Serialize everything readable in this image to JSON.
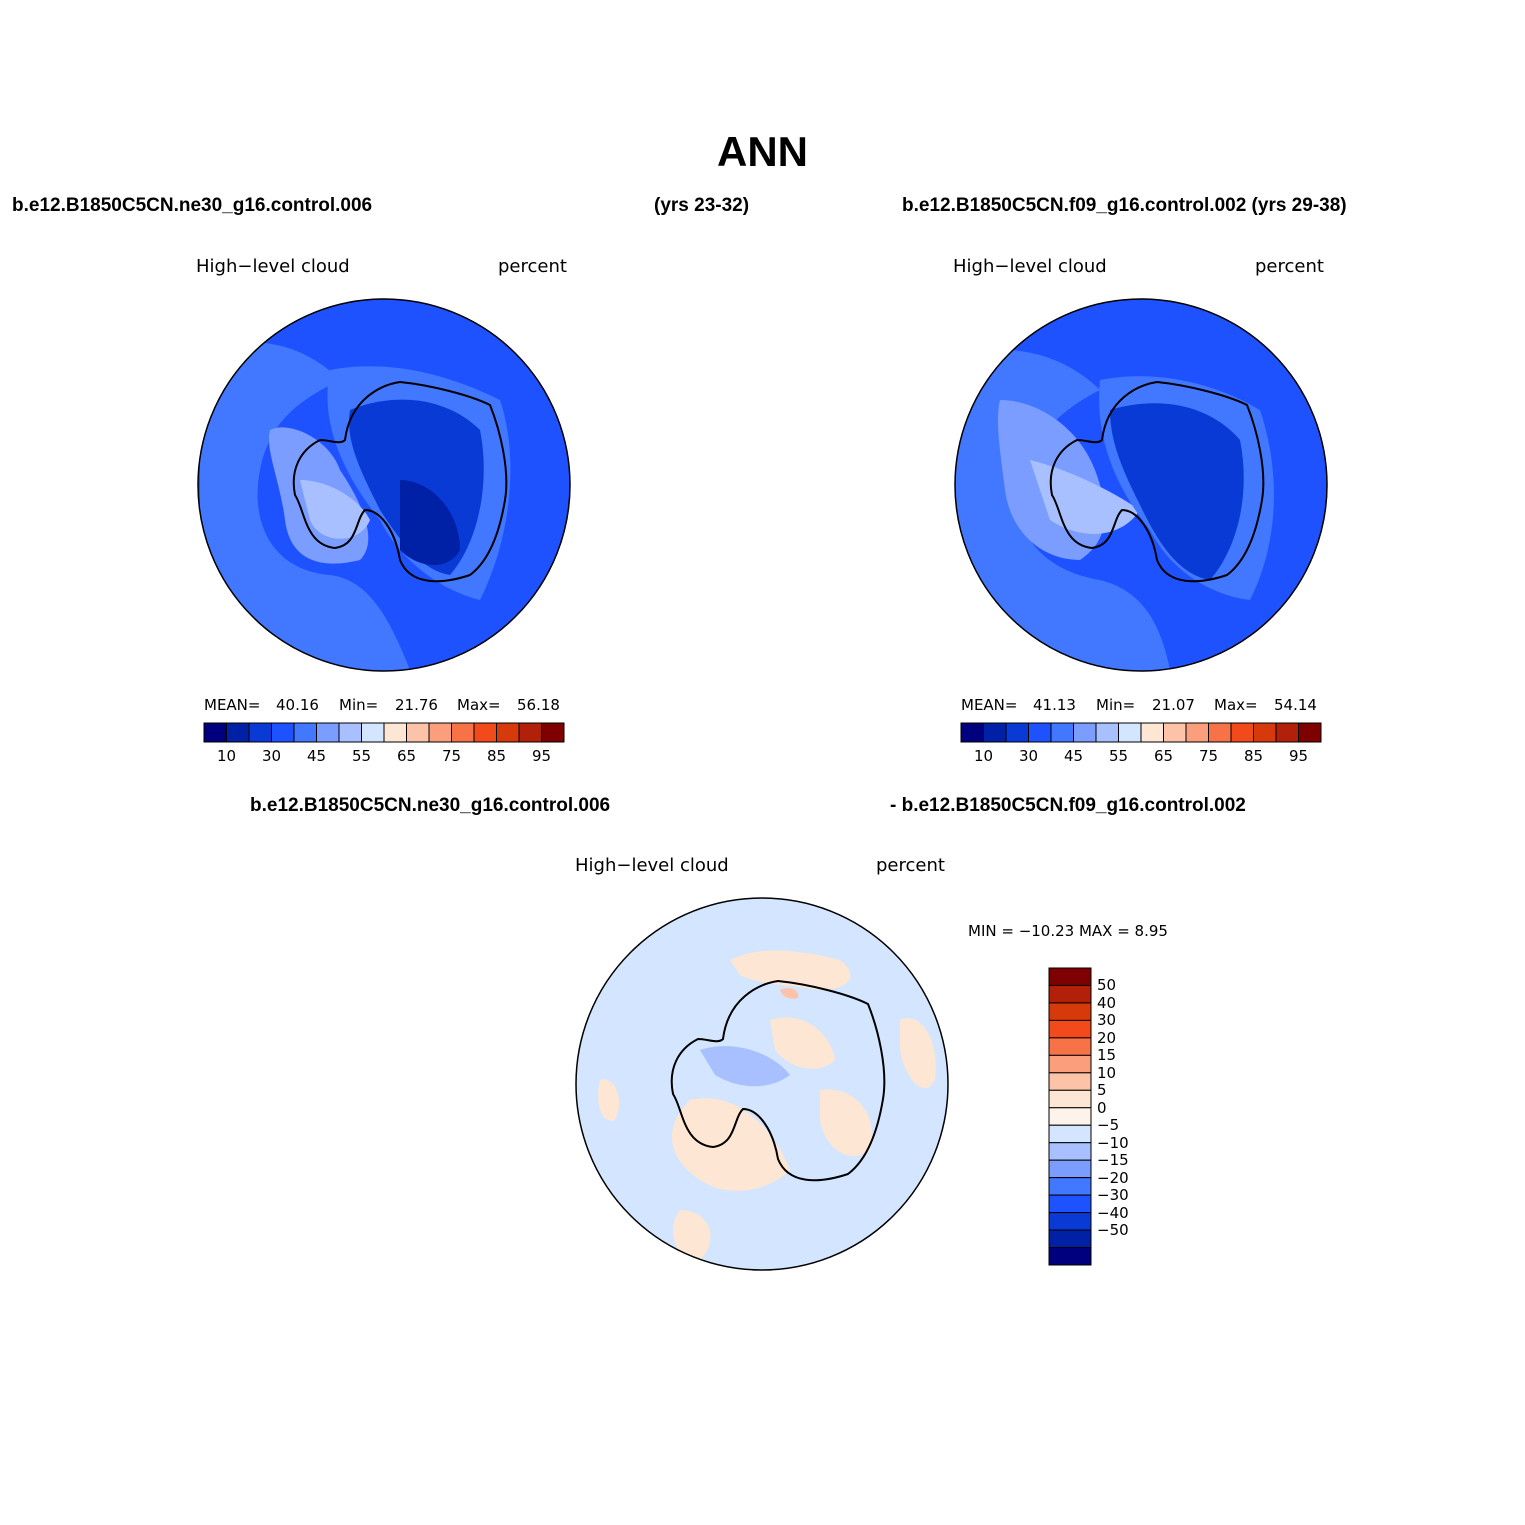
{
  "title": "ANN",
  "case1": {
    "name": "b.e12.B1850C5CN.ne30_g16.control.006",
    "years": "(yrs 23-32)"
  },
  "case2": {
    "label": "b.e12.B1850C5CN.f09_g16.control.002 (yrs 29-38)"
  },
  "diff_title": {
    "left": "b.e12.B1850C5CN.ne30_g16.control.006",
    "right": "- b.e12.B1850C5CN.f09_g16.control.002"
  },
  "variable": "High−level cloud",
  "units": "percent",
  "panel1": {
    "mean_label": "MEAN=",
    "mean": "40.16",
    "min_label": "Min=",
    "min": "21.76",
    "max_label": "Max=",
    "max": "56.18"
  },
  "panel2": {
    "mean_label": "MEAN=",
    "mean": "41.13",
    "min_label": "Min=",
    "min": "21.07",
    "max_label": "Max=",
    "max": "54.14"
  },
  "panel3": {
    "minmax": "MIN = −10.23 MAX =    8.95"
  },
  "colorbar_abs": {
    "colors": [
      "#00007f",
      "#0021a6",
      "#0a3ad6",
      "#1f52ff",
      "#4277ff",
      "#7a9dff",
      "#a8c0ff",
      "#d4e5ff",
      "#fde6d3",
      "#fdc3a8",
      "#fa9e7b",
      "#f77347",
      "#f24a1a",
      "#d73a0a",
      "#b32009",
      "#7f0000"
    ],
    "ticks": [
      "10",
      "30",
      "45",
      "55",
      "65",
      "75",
      "85",
      "95"
    ]
  },
  "colorbar_diff": {
    "colors": [
      "#7f0000",
      "#b32009",
      "#d73a0a",
      "#f24a1a",
      "#f77347",
      "#fa9e7b",
      "#fdc3a8",
      "#fde6d3",
      "#fef3ea",
      "#d4e5ff",
      "#a8c0ff",
      "#7a9dff",
      "#4277ff",
      "#1f52ff",
      "#0a3ad6",
      "#0021a6",
      "#00007f"
    ],
    "ticks": [
      "50",
      "40",
      "30",
      "20",
      "15",
      "10",
      "5",
      "0",
      "−5",
      "−10",
      "−15",
      "−20",
      "−30",
      "−40",
      "−50"
    ]
  }
}
